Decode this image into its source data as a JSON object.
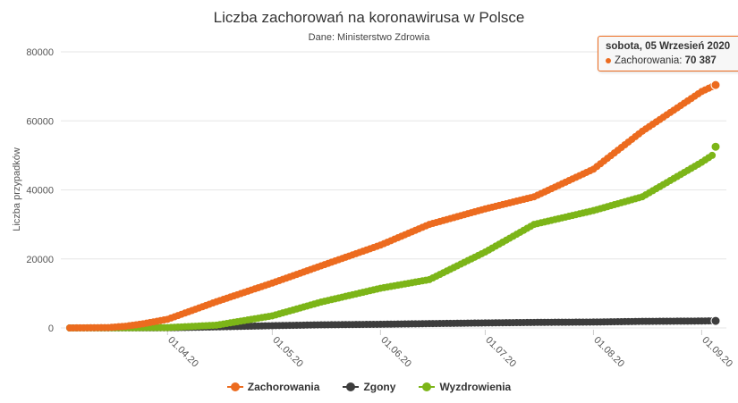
{
  "title": "Liczba zachorowań na koronawirusa w Polsce",
  "subtitle": "Dane: Ministerstwo Zdrowia",
  "tooltip": {
    "date": "sobota, 05 Wrzesień 2020",
    "series_label": "Zachorowania:",
    "value": "70 387",
    "color": "#ec6b1f"
  },
  "legend": [
    {
      "label": "Zachorowania",
      "color": "#ec6b1f"
    },
    {
      "label": "Zgony",
      "color": "#3d3d3d"
    },
    {
      "label": "Wyzdrowienia",
      "color": "#7cb518"
    }
  ],
  "chart_data": {
    "type": "scatter",
    "ylabel": "Liczba przypadków",
    "ylim": [
      0,
      80000
    ],
    "yticks": [
      0,
      20000,
      40000,
      60000,
      80000
    ],
    "xlim": [
      "2020-03-04",
      "2020-09-05"
    ],
    "xticks": [
      "01.04.20",
      "01.05.20",
      "01.06.20",
      "01.07.20",
      "01.08.20",
      "01.09.20"
    ],
    "grid": true,
    "series": [
      {
        "name": "Zachorowania",
        "color": "#ec6b1f",
        "points": [
          [
            "2020-03-04",
            0
          ],
          [
            "2020-03-15",
            100
          ],
          [
            "2020-03-20",
            500
          ],
          [
            "2020-03-25",
            1200
          ],
          [
            "2020-04-01",
            2500
          ],
          [
            "2020-04-15",
            7600
          ],
          [
            "2020-05-01",
            13000
          ],
          [
            "2020-05-15",
            18000
          ],
          [
            "2020-06-01",
            24000
          ],
          [
            "2020-06-15",
            30000
          ],
          [
            "2020-07-01",
            34500
          ],
          [
            "2020-07-15",
            38000
          ],
          [
            "2020-08-01",
            46000
          ],
          [
            "2020-08-15",
            57000
          ],
          [
            "2020-09-01",
            68500
          ],
          [
            "2020-09-05",
            70387
          ]
        ]
      },
      {
        "name": "Zgony",
        "color": "#3d3d3d",
        "points": [
          [
            "2020-03-04",
            0
          ],
          [
            "2020-04-01",
            40
          ],
          [
            "2020-04-15",
            300
          ],
          [
            "2020-05-01",
            650
          ],
          [
            "2020-05-15",
            900
          ],
          [
            "2020-06-01",
            1060
          ],
          [
            "2020-06-15",
            1250
          ],
          [
            "2020-07-01",
            1450
          ],
          [
            "2020-07-15",
            1600
          ],
          [
            "2020-08-01",
            1700
          ],
          [
            "2020-08-15",
            1900
          ],
          [
            "2020-09-01",
            2000
          ],
          [
            "2020-09-05",
            2050
          ]
        ]
      },
      {
        "name": "Wyzdrowienia",
        "color": "#7cb518",
        "points": [
          [
            "2020-03-04",
            0
          ],
          [
            "2020-04-01",
            100
          ],
          [
            "2020-04-15",
            800
          ],
          [
            "2020-05-01",
            3500
          ],
          [
            "2020-05-15",
            7500
          ],
          [
            "2020-06-01",
            11500
          ],
          [
            "2020-06-15",
            14000
          ],
          [
            "2020-07-01",
            22000
          ],
          [
            "2020-07-15",
            30000
          ],
          [
            "2020-08-01",
            34000
          ],
          [
            "2020-08-15",
            38000
          ],
          [
            "2020-09-01",
            48000
          ],
          [
            "2020-09-04",
            50000
          ],
          [
            "2020-09-05",
            52500
          ]
        ]
      }
    ]
  }
}
